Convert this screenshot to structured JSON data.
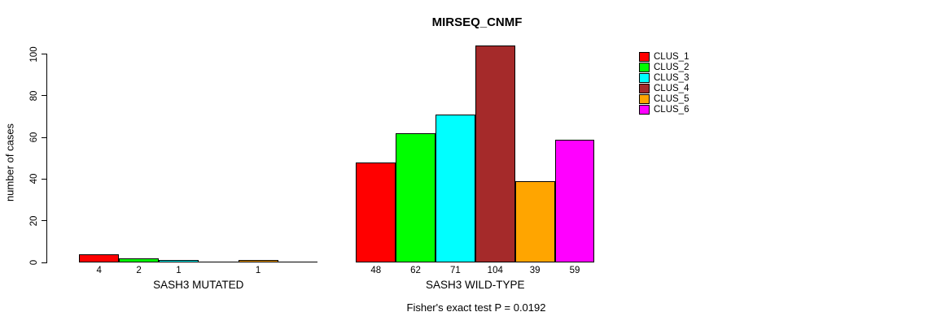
{
  "chart_data": {
    "type": "bar",
    "title": "MIRSEQ_CNMF",
    "ylabel": "number of cases",
    "ylim": [
      0,
      100
    ],
    "yticks": [
      0,
      20,
      40,
      60,
      80,
      100
    ],
    "grid": false,
    "categories": [
      "CLUS_1",
      "CLUS_2",
      "CLUS_3",
      "CLUS_4",
      "CLUS_5",
      "CLUS_6"
    ],
    "series_colors": [
      "#FF0000",
      "#00FF00",
      "#00FFFF",
      "#A52A2A",
      "#FFA500",
      "#FF00FF"
    ],
    "groups": [
      {
        "label": "SASH3 MUTATED",
        "values": [
          4,
          2,
          1,
          0,
          1,
          0
        ]
      },
      {
        "label": "SASH3 WILD-TYPE",
        "values": [
          48,
          62,
          71,
          104,
          39,
          59
        ]
      }
    ],
    "bar_value_labels": {
      "note": "value printed under each bar only when value > 0",
      "SASH3_MUTATED": [
        "4",
        "2",
        "1",
        "",
        "1",
        ""
      ],
      "SASH3_WILD_TYPE": [
        "48",
        "62",
        "71",
        "104",
        "39",
        "59"
      ]
    },
    "legend": {
      "position": "topright",
      "entries": [
        "CLUS_1",
        "CLUS_2",
        "CLUS_3",
        "CLUS_4",
        "CLUS_5",
        "CLUS_6"
      ]
    },
    "annotation": "Fisher's exact test P = 0.0192"
  }
}
